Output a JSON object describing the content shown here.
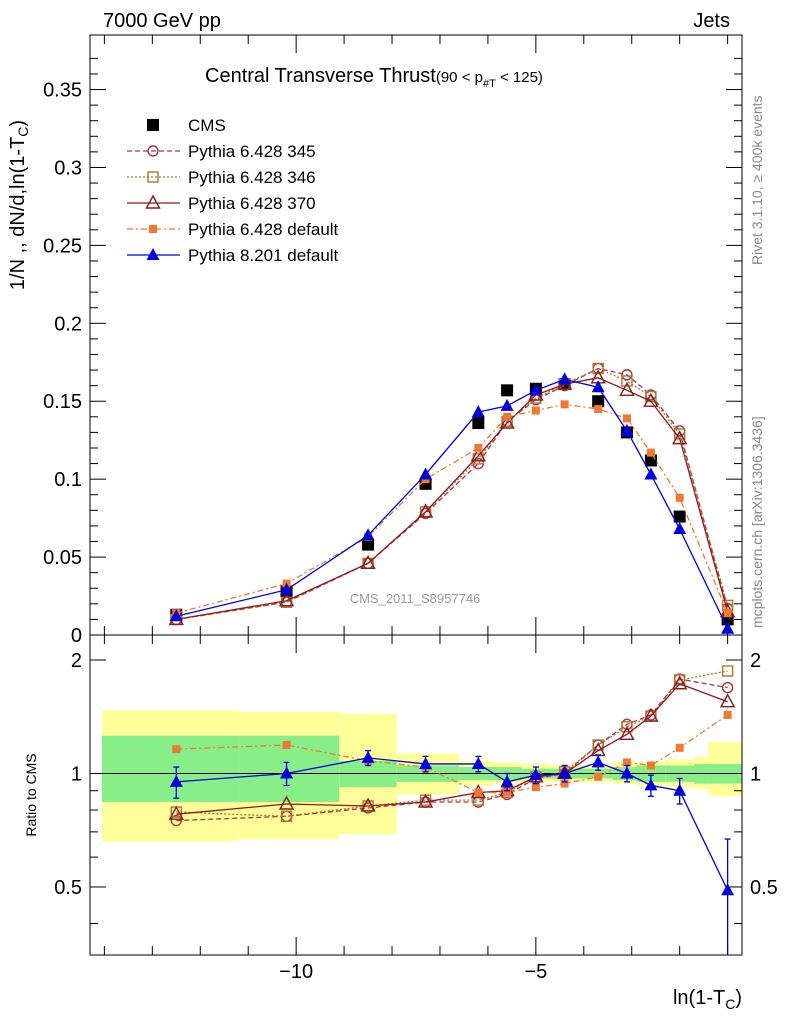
{
  "header": {
    "left": "7000 GeV pp",
    "right": "Jets",
    "title_main": "Central Transverse Thrust",
    "title_sub": "(90 < p",
    "title_sub_idx": "#T",
    "title_sub_end": " < 125)",
    "side_rivet": "Rivet 3.1.10, ≥ 400k events",
    "side_mcplots": "mcplots.cern.ch [arXiv:1306.3436]",
    "watermark": "CMS_2011_S8957746"
  },
  "chart_data": [
    {
      "type": "scatter",
      "panel": "main",
      "ylabel": "1/N ,, dN/d,ln(1-T",
      "ylabel_sub": "C",
      "ylabel_end": ")",
      "xlim": [
        -14.3,
        -0.7
      ],
      "ylim": [
        0,
        0.385
      ],
      "yticks": [
        "0",
        "0.05",
        "0.1",
        "0.15",
        "0.2",
        "0.25",
        "0.3",
        "0.35"
      ],
      "ytick_values": [
        0,
        0.05,
        0.1,
        0.15,
        0.2,
        0.25,
        0.3,
        0.35
      ],
      "x": [
        -12.5,
        -10.2,
        -8.5,
        -7.3,
        -6.2,
        -5.6,
        -5.0,
        -4.4,
        -3.7,
        -3.1,
        -2.6,
        -2.0,
        -1.0
      ],
      "series": [
        {
          "name": "CMS",
          "color": "#000000",
          "marker": "square",
          "values": [
            0.013,
            0.028,
            0.058,
            0.097,
            0.136,
            0.157,
            0.158,
            0.161,
            0.15,
            0.13,
            0.112,
            0.076,
            0.01
          ]
        },
        {
          "name": "Pythia 6.428 345",
          "color": "#aa3344",
          "marker": "circle-open",
          "dash": "5,3",
          "values": [
            0.01,
            0.021,
            0.046,
            0.078,
            0.11,
            0.137,
            0.151,
            0.16,
            0.171,
            0.167,
            0.154,
            0.131,
            0.017
          ]
        },
        {
          "name": "Pythia 6.428 346",
          "color": "#aa7733",
          "marker": "square-open",
          "dash": "2,2",
          "values": [
            0.01,
            0.021,
            0.046,
            0.079,
            0.113,
            0.137,
            0.152,
            0.161,
            0.171,
            0.163,
            0.153,
            0.129,
            0.019
          ]
        },
        {
          "name": "Pythia 6.428 370",
          "color": "#8b1a1a",
          "marker": "triangle-open",
          "values": [
            0.01,
            0.022,
            0.046,
            0.079,
            0.115,
            0.136,
            0.154,
            0.161,
            0.165,
            0.157,
            0.15,
            0.126,
            0.015
          ]
        },
        {
          "name": "Pythia 6.428 default",
          "color": "#f07830",
          "marker": "square-small",
          "dash": "6,3,2,3",
          "values": [
            0.014,
            0.033,
            0.063,
            0.1,
            0.12,
            0.14,
            0.144,
            0.148,
            0.145,
            0.139,
            0.117,
            0.088,
            0.014
          ]
        },
        {
          "name": "Pythia 8.201 default",
          "color": "#0000dd",
          "marker": "triangle",
          "values": [
            0.012,
            0.029,
            0.064,
            0.103,
            0.143,
            0.147,
            0.157,
            0.164,
            0.159,
            0.131,
            0.103,
            0.068,
            0.004
          ]
        }
      ]
    },
    {
      "type": "scatter",
      "panel": "ratio",
      "ylabel": "Ratio to CMS",
      "xlabel": "ln(1-T",
      "xlabel_sub": "C",
      "xlabel_end": ")",
      "xlim": [
        -14.3,
        -0.7
      ],
      "ylim": [
        0.33,
        2.33
      ],
      "yticks": [
        "0.5",
        "1",
        "2"
      ],
      "ytick_values": [
        0.5,
        1,
        2
      ],
      "xticks": [
        "−10",
        "−5"
      ],
      "xtick_values": [
        -10,
        -5
      ],
      "bands": {
        "edges": [
          -14.3,
          -11.2,
          -9.1,
          -7.9,
          -6.6,
          -5.9,
          -5.3,
          -4.7,
          -4.1,
          -3.4,
          -2.9,
          -2.3,
          -1.7,
          -1.4,
          -0.7
        ],
        "green": [
          [
            0.84,
            1.26
          ],
          [
            0.84,
            1.26
          ],
          [
            0.92,
            1.08
          ],
          [
            0.95,
            1.05
          ],
          [
            0.96,
            1.04
          ],
          [
            0.96,
            1.04
          ],
          [
            0.97,
            1.03
          ],
          [
            0.97,
            1.03
          ],
          [
            0.97,
            1.03
          ],
          [
            0.96,
            1.04
          ],
          [
            0.95,
            1.05
          ],
          [
            0.95,
            1.05
          ],
          [
            0.94,
            1.06
          ],
          [
            0.94,
            1.06
          ]
        ],
        "yellow": [
          [
            0.66,
            1.47
          ],
          [
            0.67,
            1.46
          ],
          [
            0.69,
            1.44
          ],
          [
            0.88,
            1.13
          ],
          [
            0.93,
            1.08
          ],
          [
            0.94,
            1.07
          ],
          [
            0.95,
            1.06
          ],
          [
            0.95,
            1.05
          ],
          [
            0.95,
            1.05
          ],
          [
            0.94,
            1.07
          ],
          [
            0.93,
            1.07
          ],
          [
            0.92,
            1.09
          ],
          [
            0.91,
            1.11
          ],
          [
            0.87,
            1.21
          ]
        ]
      },
      "x": [
        -12.5,
        -10.2,
        -8.5,
        -7.3,
        -6.2,
        -5.6,
        -5.0,
        -4.4,
        -3.7,
        -3.1,
        -2.6,
        -2.0,
        -1.0
      ],
      "series": [
        {
          "name": "Pythia 6.428 345",
          "color": "#aa3344",
          "marker": "circle-open",
          "dash": "5,3",
          "values": [
            0.75,
            0.77,
            0.81,
            0.84,
            0.84,
            0.88,
            0.97,
            1.0,
            1.19,
            1.35,
            1.43,
            1.78,
            1.69
          ]
        },
        {
          "name": "Pythia 6.428 346",
          "color": "#aa7733",
          "marker": "square-open",
          "dash": "2,2",
          "values": [
            0.79,
            0.77,
            0.82,
            0.85,
            0.85,
            0.89,
            0.98,
            1.01,
            1.19,
            1.33,
            1.42,
            1.77,
            1.87
          ]
        },
        {
          "name": "Pythia 6.428 370",
          "color": "#8b1a1a",
          "marker": "triangle-open",
          "values": [
            0.78,
            0.83,
            0.82,
            0.84,
            0.89,
            0.9,
            0.98,
            1.0,
            1.15,
            1.27,
            1.42,
            1.73,
            1.55
          ]
        },
        {
          "name": "Pythia 6.428 default",
          "color": "#f07830",
          "marker": "square-small",
          "dash": "6,3,2,3",
          "values": [
            1.16,
            1.19,
            1.08,
            1.04,
            0.89,
            0.89,
            0.92,
            0.94,
            0.98,
            1.07,
            1.05,
            1.17,
            1.43
          ]
        },
        {
          "name": "Pythia 8.201 default",
          "color": "#0000dd",
          "marker": "triangle",
          "values": [
            0.95,
            1.0,
            1.1,
            1.06,
            1.06,
            0.95,
            0.99,
            1.0,
            1.07,
            1.0,
            0.93,
            0.9,
            0.49
          ],
          "errors": [
            0.09,
            0.07,
            0.05,
            0.05,
            0.05,
            0.05,
            0.05,
            0.05,
            0.05,
            0.05,
            0.06,
            0.07,
            0.18
          ]
        }
      ]
    }
  ]
}
